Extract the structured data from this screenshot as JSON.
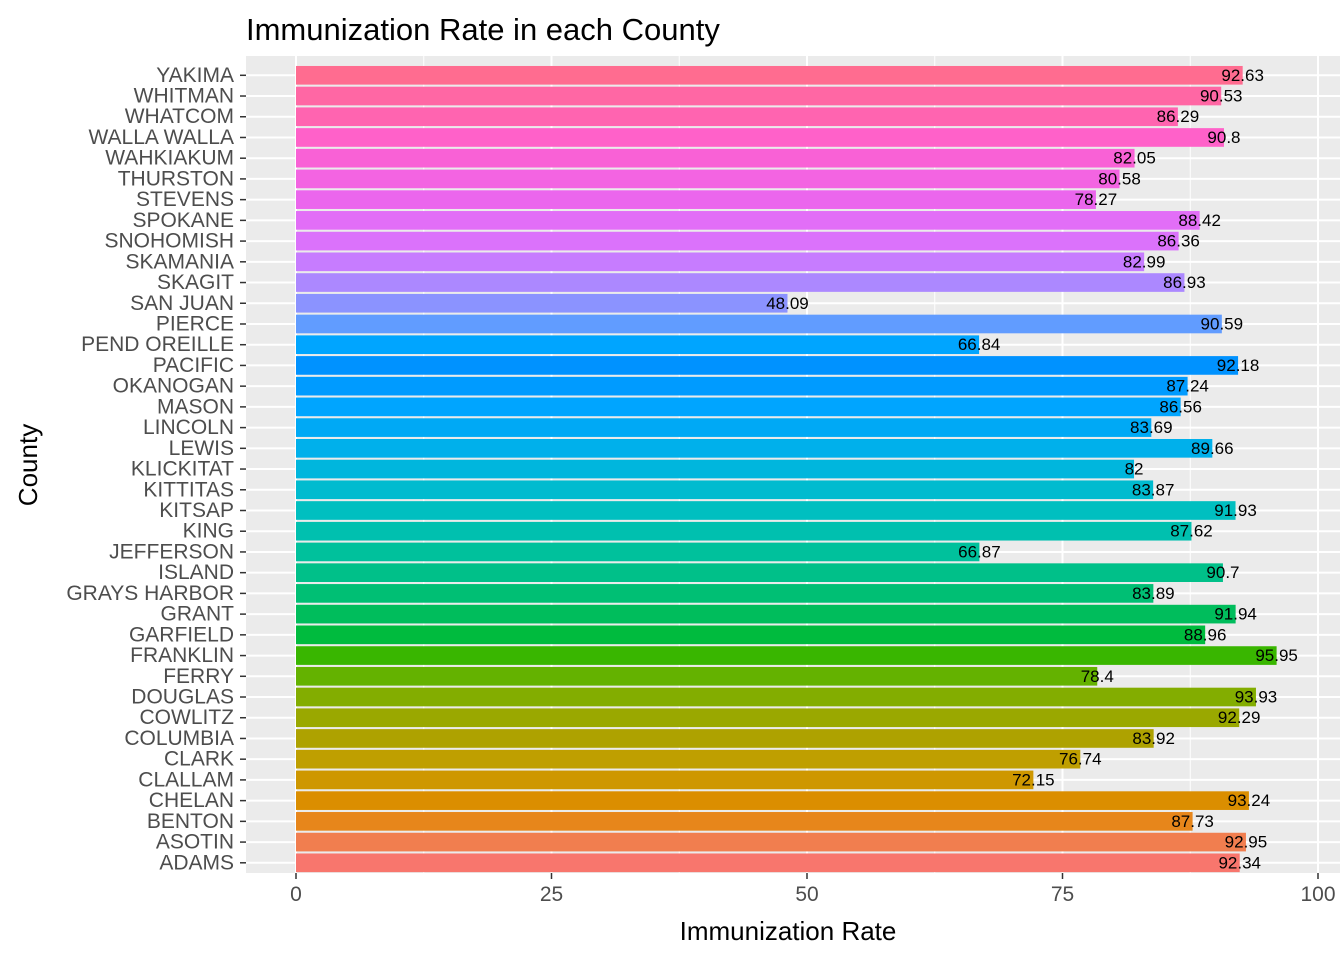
{
  "chart_data": {
    "type": "bar",
    "orientation": "horizontal",
    "title": "Immunization Rate in each County",
    "xlabel": "Immunization Rate",
    "ylabel": "County",
    "xlim": [
      0,
      100
    ],
    "x_ticks": [
      0,
      25,
      50,
      75,
      100
    ],
    "x_tick_labels": [
      "0",
      "25",
      "50",
      "75",
      "100"
    ],
    "grid": true,
    "panel_background": "#EBEBEB",
    "categories": [
      "ADAMS",
      "ASOTIN",
      "BENTON",
      "CHELAN",
      "CLALLAM",
      "CLARK",
      "COLUMBIA",
      "COWLITZ",
      "DOUGLAS",
      "FERRY",
      "FRANKLIN",
      "GARFIELD",
      "GRANT",
      "GRAYS HARBOR",
      "ISLAND",
      "JEFFERSON",
      "KING",
      "KITSAP",
      "KITTITAS",
      "KLICKITAT",
      "LEWIS",
      "LINCOLN",
      "MASON",
      "OKANOGAN",
      "PACIFIC",
      "PEND OREILLE",
      "PIERCE",
      "SAN JUAN",
      "SKAGIT",
      "SKAMANIA",
      "SNOHOMISH",
      "SPOKANE",
      "STEVENS",
      "THURSTON",
      "WAHKIAKUM",
      "WALLA WALLA",
      "WHATCOM",
      "WHITMAN",
      "YAKIMA"
    ],
    "values": [
      92.34,
      92.95,
      87.73,
      93.24,
      72.15,
      76.74,
      83.92,
      92.29,
      93.93,
      78.4,
      95.95,
      88.96,
      91.94,
      83.89,
      90.7,
      66.87,
      87.62,
      91.93,
      83.87,
      82,
      89.66,
      83.69,
      86.56,
      87.24,
      92.18,
      66.84,
      90.59,
      48.09,
      86.93,
      82.99,
      86.36,
      88.42,
      78.27,
      80.58,
      82.05,
      90.8,
      86.29,
      90.53,
      92.63
    ],
    "value_labels": [
      "92.34",
      "92.95",
      "87.73",
      "93.24",
      "72.15",
      "76.74",
      "83.92",
      "92.29",
      "93.93",
      "78.4",
      "95.95",
      "88.96",
      "91.94",
      "83.89",
      "90.7",
      "66.87",
      "87.62",
      "91.93",
      "83.87",
      "82",
      "89.66",
      "83.69",
      "86.56",
      "87.24",
      "92.18",
      "66.84",
      "90.59",
      "48.09",
      "86.93",
      "82.99",
      "86.36",
      "88.42",
      "78.27",
      "80.58",
      "82.05",
      "90.8",
      "86.29",
      "90.53",
      "92.63"
    ],
    "colors": [
      "#F8766D",
      "#F17E4F",
      "#E7861B",
      "#DB8E00",
      "#CE9700",
      "#BF9F00",
      "#AEA200",
      "#9AA800",
      "#83AD00",
      "#64B200",
      "#39B600",
      "#00BB3E",
      "#00BD5C",
      "#00BF74",
      "#00C089",
      "#00C19C",
      "#00C0AF",
      "#00BFC0",
      "#00BBCF",
      "#00B6DD",
      "#00B0EB",
      "#00A9F5",
      "#00A5FF",
      "#009BFF",
      "#0092FF",
      "#00A5FF",
      "#619CFF",
      "#8B93FF",
      "#AC88FF",
      "#C77CFF",
      "#DB72FB",
      "#E26EF7",
      "#EB66ED",
      "#F364E2",
      "#F961D6",
      "#FF61C9",
      "#FF64B0",
      "#FF67A4",
      "#FF6C90"
    ]
  }
}
